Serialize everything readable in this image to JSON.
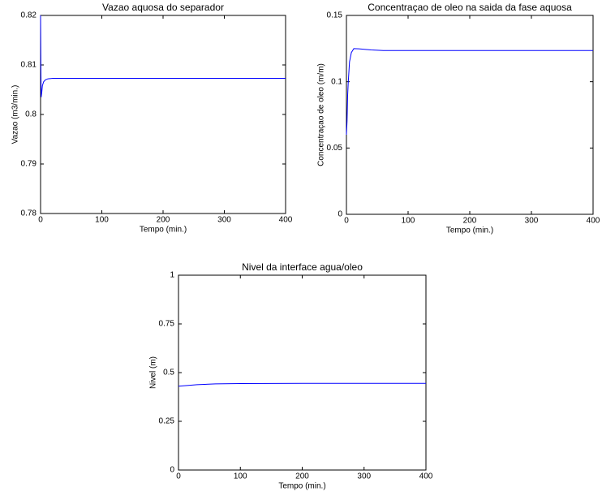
{
  "chart_data": [
    {
      "type": "line",
      "title": "Vazao aquosa do separador",
      "xlabel": "Tempo (min.)",
      "ylabel": "Vazao (m3/min.)",
      "x": [
        0,
        0.5,
        1,
        2,
        3,
        5,
        8,
        12,
        20,
        50,
        100,
        200,
        300,
        400
      ],
      "series": [
        {
          "color": "#0000ff",
          "values": [
            0.82,
            0.81,
            0.8035,
            0.8045,
            0.8058,
            0.8066,
            0.807,
            0.8072,
            0.8073,
            0.8073,
            0.8073,
            0.8073,
            0.8073,
            0.8073
          ]
        }
      ],
      "xlim": [
        0,
        400
      ],
      "xticks": [
        0,
        100,
        200,
        300,
        400
      ],
      "ylim": [
        0.78,
        0.82
      ],
      "yticks": [
        0.78,
        0.79,
        0.8,
        0.81,
        0.82
      ]
    },
    {
      "type": "line",
      "title": "Concentraçao de oleo na saida da fase aquosa",
      "xlabel": "Tempo (min.)",
      "ylabel": "Concentraçao de oleo (m/m)",
      "x": [
        0,
        1,
        2,
        3,
        5,
        8,
        12,
        20,
        40,
        60,
        100,
        200,
        300,
        400
      ],
      "series": [
        {
          "color": "#0000ff",
          "values": [
            0.06,
            0.07,
            0.09,
            0.1,
            0.115,
            0.122,
            0.125,
            0.1248,
            0.124,
            0.1235,
            0.1235,
            0.1235,
            0.1235,
            0.1235
          ]
        }
      ],
      "xlim": [
        0,
        400
      ],
      "xticks": [
        0,
        100,
        200,
        300,
        400
      ],
      "ylim": [
        0,
        0.15
      ],
      "yticks": [
        0,
        0.05,
        0.1,
        0.15
      ]
    },
    {
      "type": "line",
      "title": "Nivel da interface agua/oleo",
      "xlabel": "Tempo (min.)",
      "ylabel": "Nivel (m)",
      "x": [
        0,
        10,
        30,
        60,
        100,
        200,
        300,
        400
      ],
      "series": [
        {
          "color": "#0000ff",
          "values": [
            0.43,
            0.433,
            0.438,
            0.442,
            0.444,
            0.445,
            0.445,
            0.445
          ]
        }
      ],
      "xlim": [
        0,
        400
      ],
      "xticks": [
        0,
        100,
        200,
        300,
        400
      ],
      "ylim": [
        0,
        1
      ],
      "yticks": [
        0,
        0.25,
        0.5,
        0.75,
        1
      ]
    }
  ]
}
